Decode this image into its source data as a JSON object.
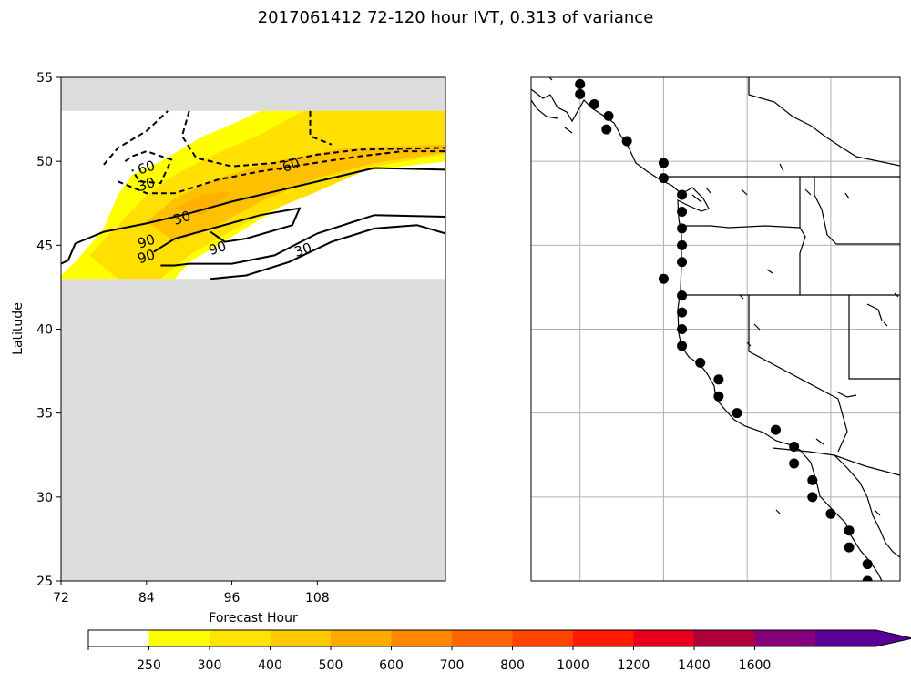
{
  "title": "2017061412 72-120 hour IVT, 0.313 of variance",
  "chart_data": [
    {
      "type": "contour",
      "xlabel": "Forecast Hour",
      "ylabel": "Latitude",
      "xlim": [
        72,
        126
      ],
      "ylim": [
        25,
        55
      ],
      "x_ticks": [
        72,
        84,
        96,
        108
      ],
      "y_ticks": [
        25,
        30,
        35,
        40,
        45,
        50,
        55
      ],
      "missing_data_color": "#dcdcdc",
      "data_lat_range": [
        43,
        53
      ],
      "filled_levels": [
        {
          "min": 250,
          "color": "#ffff00",
          "region": [
            [
              72,
              43.2
            ],
            [
              74,
              44
            ],
            [
              78,
              46
            ],
            [
              80,
              48
            ],
            [
              82,
              49.2
            ],
            [
              86,
              50
            ],
            [
              92,
              51.5
            ],
            [
              96,
              52.2
            ],
            [
              100,
              53
            ],
            [
              126,
              53
            ],
            [
              126,
              50
            ],
            [
              114,
              49.4
            ],
            [
              104,
              47.6
            ],
            [
              96,
              45.5
            ],
            [
              90,
              44
            ],
            [
              88,
              43
            ],
            [
              72,
              43
            ]
          ]
        },
        {
          "min": 300,
          "color": "#ffe000",
          "region": [
            [
              76,
              44.4
            ],
            [
              80,
              46.2
            ],
            [
              84,
              48
            ],
            [
              88,
              49.2
            ],
            [
              94,
              50.5
            ],
            [
              100,
              51.6
            ],
            [
              106,
              53
            ],
            [
              126,
              53
            ],
            [
              126,
              50.4
            ],
            [
              116,
              49.7
            ],
            [
              108,
              48.2
            ],
            [
              100,
              46.8
            ],
            [
              94,
              45.4
            ],
            [
              90,
              44.4
            ],
            [
              86,
              43
            ],
            [
              80,
              43
            ]
          ]
        },
        {
          "min": 400,
          "color": "#ffc000",
          "region": [
            [
              84,
              46.4
            ],
            [
              88,
              47.8
            ],
            [
              94,
              49
            ],
            [
              102,
              50
            ],
            [
              112,
              50.8
            ],
            [
              126,
              51
            ],
            [
              126,
              50.5
            ],
            [
              116,
              49.9
            ],
            [
              108,
              49
            ],
            [
              100,
              47.6
            ],
            [
              94,
              46.2
            ],
            [
              88,
              45.2
            ]
          ]
        },
        {
          "min": 500,
          "color": "#ffb000",
          "region": [
            [
              88,
              47.2
            ],
            [
              92,
              48
            ],
            [
              96,
              48.2
            ],
            [
              92,
              46.8
            ]
          ]
        }
      ],
      "contours": [
        {
          "value": -60,
          "style": "dashed",
          "points": [
            [
              78,
              49.8
            ],
            [
              80,
              50.8
            ],
            [
              84,
              51.8
            ],
            [
              87,
              53
            ]
          ]
        },
        {
          "value": -60,
          "style": "dashed",
          "points": [
            [
              81,
              50
            ],
            [
              82,
              50.3
            ],
            [
              84,
              50.6
            ],
            [
              87.5,
              50.1
            ],
            [
              86,
              48.7
            ],
            [
              83,
              48.8
            ],
            [
              82,
              49.5
            ]
          ]
        },
        {
          "value": -60,
          "style": "dashed",
          "points": [
            [
              90,
              53
            ],
            [
              89,
              51.5
            ],
            [
              91,
              50.2
            ],
            [
              96,
              49.7
            ],
            [
              102,
              49.9
            ],
            [
              108,
              50.4
            ],
            [
              114,
              50.7
            ],
            [
              126,
              50.8
            ]
          ]
        },
        {
          "value": -60,
          "style": "dashed",
          "points": [
            [
              107,
              53
            ],
            [
              107,
              51.5
            ],
            [
              110,
              51
            ]
          ]
        },
        {
          "value": -30,
          "style": "dashed",
          "points": [
            [
              80,
              48.8
            ],
            [
              84,
              48.1
            ],
            [
              88,
              48.1
            ],
            [
              94,
              48.9
            ],
            [
              100,
              49.4
            ],
            [
              106,
              49.8
            ],
            [
              114,
              50.3
            ],
            [
              120,
              50.6
            ],
            [
              126,
              50.6
            ]
          ]
        },
        {
          "value": 30,
          "style": "solid",
          "points": [
            [
              72,
              43.9
            ],
            [
              73,
              44.1
            ],
            [
              74,
              45.1
            ],
            [
              78,
              45.8
            ],
            [
              84,
              46.3
            ],
            [
              90,
              46.9
            ],
            [
              96,
              47.6
            ],
            [
              104,
              48.4
            ],
            [
              110,
              49.0
            ],
            [
              116,
              49.6
            ],
            [
              126,
              49.5
            ]
          ]
        },
        {
          "value": 90,
          "style": "solid",
          "points": [
            [
              85,
              44.6
            ],
            [
              88,
              45.4
            ],
            [
              94,
              46.1
            ],
            [
              100,
              46.8
            ],
            [
              104,
              47.1
            ],
            [
              105.5,
              47.2
            ],
            [
              104.5,
              46.2
            ],
            [
              98,
              45.4
            ],
            [
              95,
              45.2
            ],
            [
              93,
              45.8
            ]
          ]
        },
        {
          "value": 60,
          "style": "solid",
          "points": [
            [
              86,
              43.8
            ],
            [
              88,
              43.8
            ],
            [
              90,
              43.9
            ],
            [
              96,
              43.9
            ],
            [
              102,
              44.4
            ],
            [
              108,
              45.7
            ],
            [
              116,
              46.8
            ],
            [
              126,
              46.7
            ]
          ]
        },
        {
          "value": 30,
          "style": "solid",
          "points": [
            [
              93,
              43
            ],
            [
              98,
              43.2
            ],
            [
              104,
              44
            ],
            [
              110,
              45.2
            ],
            [
              116,
              46
            ],
            [
              122,
              46.2
            ],
            [
              126,
              45.7
            ]
          ]
        }
      ],
      "contour_labels": [
        {
          "text": "60",
          "x": 84,
          "y": 49.6
        },
        {
          "text": "30",
          "x": 84,
          "y": 48.6
        },
        {
          "text": "-60",
          "x": 104,
          "y": 49.7
        },
        {
          "text": "30",
          "x": 89,
          "y": 46.6
        },
        {
          "text": "90",
          "x": 94,
          "y": 44.8
        },
        {
          "text": "30",
          "x": 106,
          "y": 44.7
        },
        {
          "text": "90",
          "x": 84,
          "y": 45.2
        },
        {
          "text": "90",
          "x": 84,
          "y": 44.3
        }
      ]
    },
    {
      "type": "map",
      "lon_range": [
        -129,
        -110.9
      ],
      "lat_range": [
        25,
        55
      ],
      "grid_lon": [
        -126.6,
        -122.5,
        -118.4,
        -114.3
      ],
      "grid_lat": [
        30,
        35,
        40,
        45,
        50
      ],
      "station_points": [
        [
          -126.6,
          54.6
        ],
        [
          -126.6,
          54.0
        ],
        [
          -125.9,
          53.4
        ],
        [
          -125.2,
          52.7
        ],
        [
          -125.3,
          51.9
        ],
        [
          -124.3,
          51.2
        ],
        [
          -122.5,
          49.9
        ],
        [
          -122.5,
          49.0
        ],
        [
          -121.6,
          48.0
        ],
        [
          -121.6,
          47.0
        ],
        [
          -121.6,
          46.0
        ],
        [
          -121.6,
          45.0
        ],
        [
          -121.6,
          44.0
        ],
        [
          -122.5,
          43.0
        ],
        [
          -121.6,
          42.0
        ],
        [
          -121.6,
          41.0
        ],
        [
          -121.6,
          40.0
        ],
        [
          -121.6,
          39.0
        ],
        [
          -120.7,
          38.0
        ],
        [
          -119.8,
          37.0
        ],
        [
          -119.8,
          36.0
        ],
        [
          -118.9,
          35.0
        ],
        [
          -117.0,
          34.0
        ],
        [
          -116.1,
          33.0
        ],
        [
          -116.1,
          32.0
        ],
        [
          -115.2,
          31.0
        ],
        [
          -115.2,
          30.0
        ],
        [
          -114.3,
          29.0
        ],
        [
          -113.4,
          28.0
        ],
        [
          -113.4,
          27.0
        ],
        [
          -112.5,
          26.0
        ],
        [
          -112.5,
          25.0
        ]
      ]
    },
    {
      "type": "colorbar",
      "ticks": [
        "250",
        "300",
        "400",
        "500",
        "600",
        "700",
        "800",
        "1000",
        "1200",
        "1400",
        "1600"
      ],
      "colors": [
        "#ffffff",
        "#ffff00",
        "#ffe400",
        "#ffc800",
        "#ffaa00",
        "#ff8800",
        "#ff6600",
        "#ff4400",
        "#ff1a00",
        "#e8001c",
        "#b0003c",
        "#85007a",
        "#5a0096"
      ],
      "extend": "max"
    }
  ]
}
